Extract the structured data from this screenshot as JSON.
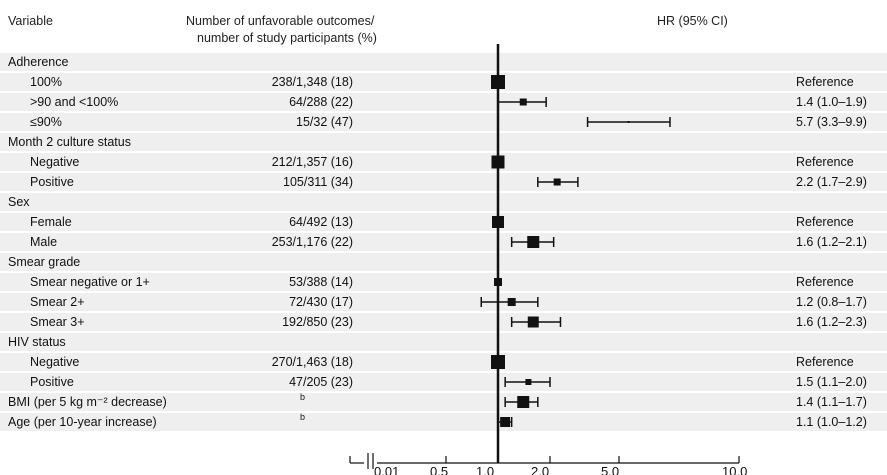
{
  "chart_data": {
    "type": "forest",
    "headers": {
      "variable": "Variable",
      "outcomes_line1": "Number of unfavorable outcomes/",
      "outcomes_line2": "number of study participants (%)",
      "hr": "HR (95% CI)"
    },
    "x_scale": "log",
    "x_axis_ticks": [
      "0.01",
      "0.5",
      "1.0",
      "2.0",
      "5.0",
      "10.0"
    ],
    "x_tick_values": [
      0.5,
      1.0,
      2.0,
      5.0,
      10.0
    ],
    "axis_break": true,
    "reference_line": 1.0,
    "rows": [
      {
        "type": "group",
        "label": "Adherence"
      },
      {
        "type": "item",
        "label": "100%",
        "outcomes": "238/1,348 (18)",
        "hr": 1.0,
        "lo": 1.0,
        "hi": 1.0,
        "hr_text": "Reference",
        "marker_size": 14
      },
      {
        "type": "item",
        "label": ">90 and <100%",
        "outcomes": "64/288 (22)",
        "hr": 1.4,
        "lo": 1.0,
        "hi": 1.9,
        "hr_text": "1.4 (1.0–1.9)",
        "marker_size": 7
      },
      {
        "type": "item",
        "label": "≤90%",
        "outcomes": "15/32 (47)",
        "hr": 5.7,
        "lo": 3.3,
        "hi": 9.9,
        "hr_text": "5.7 (3.3–9.9)",
        "marker_size": 2
      },
      {
        "type": "group",
        "label": "Month 2 culture status"
      },
      {
        "type": "item",
        "label": "Negative",
        "outcomes": "212/1,357 (16)",
        "hr": 1.0,
        "lo": 1.0,
        "hi": 1.0,
        "hr_text": "Reference",
        "marker_size": 13
      },
      {
        "type": "item",
        "label": "Positive",
        "outcomes": "105/311 (34)",
        "hr": 2.2,
        "lo": 1.7,
        "hi": 2.9,
        "hr_text": "2.2 (1.7–2.9)",
        "marker_size": 7
      },
      {
        "type": "group",
        "label": "Sex"
      },
      {
        "type": "item",
        "label": "Female",
        "outcomes": "64/492 (13)",
        "hr": 1.0,
        "lo": 1.0,
        "hi": 1.0,
        "hr_text": "Reference",
        "marker_size": 12
      },
      {
        "type": "item",
        "label": "Male",
        "outcomes": "253/1,176 (22)",
        "hr": 1.6,
        "lo": 1.2,
        "hi": 2.1,
        "hr_text": "1.6 (1.2–2.1)",
        "marker_size": 12
      },
      {
        "type": "group",
        "label": "Smear grade"
      },
      {
        "type": "item",
        "label": "Smear negative or 1+",
        "outcomes": "53/388 (14)",
        "hr": 1.0,
        "lo": 1.0,
        "hi": 1.0,
        "hr_text": "Reference",
        "marker_size": 8
      },
      {
        "type": "item",
        "label": "Smear 2+",
        "outcomes": "72/430 (17)",
        "hr": 1.2,
        "lo": 0.8,
        "hi": 1.7,
        "hr_text": "1.2 (0.8–1.7)",
        "marker_size": 8
      },
      {
        "type": "item",
        "label": "Smear 3+",
        "outcomes": "192/850 (23)",
        "hr": 1.6,
        "lo": 1.2,
        "hi": 2.3,
        "hr_text": "1.6 (1.2–2.3)",
        "marker_size": 11
      },
      {
        "type": "group",
        "label": "HIV status"
      },
      {
        "type": "item",
        "label": "Negative",
        "outcomes": "270/1,463 (18)",
        "hr": 1.0,
        "lo": 1.0,
        "hi": 1.0,
        "hr_text": "Reference",
        "marker_size": 14
      },
      {
        "type": "item",
        "label": "Positive",
        "outcomes": "47/205 (23)",
        "hr": 1.5,
        "lo": 1.1,
        "hi": 2.0,
        "hr_text": "1.5 (1.1–2.0)",
        "marker_size": 6
      },
      {
        "type": "item",
        "label": "BMI (per 5 kg m⁻² decrease)",
        "outcomes": "b",
        "hr": 1.4,
        "lo": 1.1,
        "hi": 1.7,
        "hr_text": "1.4 (1.1–1.7)",
        "marker_size": 12,
        "outcomes_superscript": true,
        "flush": true
      },
      {
        "type": "item",
        "label": "Age (per 10-year increase)",
        "outcomes": "b",
        "hr": 1.1,
        "lo": 1.0,
        "hi": 1.2,
        "hr_text": "1.1 (1.0–1.2)",
        "marker_size": 10,
        "outcomes_superscript": true,
        "flush": true
      }
    ],
    "colors": {
      "row_shading": "#efefef",
      "ink": "#111111"
    }
  }
}
